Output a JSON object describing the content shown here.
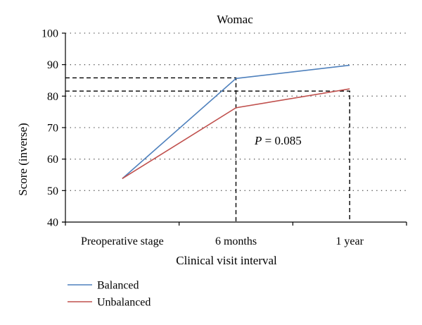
{
  "chart_data": {
    "type": "line",
    "title": "Womac",
    "xlabel": "Clinical visit interval",
    "ylabel": "Score (inverse)",
    "categories": [
      "Preoperative stage",
      "6 months",
      "1 year"
    ],
    "ylim": [
      40,
      100
    ],
    "yticks": [
      "40",
      "50",
      "60",
      "70",
      "80",
      "90",
      "100"
    ],
    "grid": true,
    "legend_position": "bottom-left",
    "series": [
      {
        "name": "Balanced",
        "color": "#4f81bd",
        "values": [
          53.8,
          85.6,
          89.8
        ]
      },
      {
        "name": "Unbalanced",
        "color": "#c0504d",
        "values": [
          53.8,
          76.3,
          82.3
        ]
      }
    ],
    "reference_values": [
      85.8,
      81.6
    ],
    "annotation": {
      "italic": "P",
      "text": " = 0.085"
    }
  }
}
